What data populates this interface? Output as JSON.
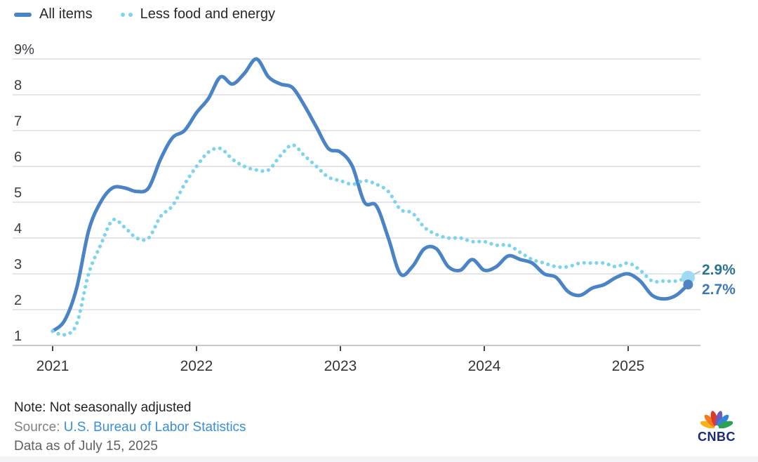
{
  "legend": {
    "all_items_label": "All items",
    "core_label": "Less food and energy"
  },
  "chart_data": {
    "type": "line",
    "title": "",
    "xlabel": "",
    "ylabel": "",
    "x_unit": "monthly",
    "x_start": "2021-01",
    "x_end": "2025-06",
    "x_tick_labels": [
      "2021",
      "2022",
      "2023",
      "2024",
      "2025"
    ],
    "x_tick_month_index": [
      0,
      12,
      24,
      36,
      48
    ],
    "y_tick_labels": [
      "9%",
      "8",
      "7",
      "6",
      "5",
      "4",
      "3",
      "2",
      "1"
    ],
    "y_tick_values": [
      9,
      8,
      7,
      6,
      5,
      4,
      3,
      2,
      1
    ],
    "ylim": [
      1,
      9
    ],
    "grid": "horizontal",
    "legend_position": "top-left",
    "series": [
      {
        "name": "All items",
        "style": "solid",
        "color": "#4a84c6",
        "end_dot_color": "#5182c2",
        "end_label": "2.7%",
        "end_label_color": "#3e78ba",
        "values": [
          1.4,
          1.7,
          2.6,
          4.2,
          5.0,
          5.4,
          5.4,
          5.3,
          5.4,
          6.2,
          6.8,
          7.0,
          7.5,
          7.9,
          8.5,
          8.3,
          8.6,
          9.0,
          8.5,
          8.3,
          8.2,
          7.7,
          7.1,
          6.5,
          6.4,
          6.0,
          5.0,
          4.9,
          4.0,
          3.0,
          3.2,
          3.7,
          3.7,
          3.2,
          3.1,
          3.4,
          3.1,
          3.2,
          3.5,
          3.4,
          3.3,
          3.0,
          2.9,
          2.5,
          2.4,
          2.6,
          2.7,
          2.9,
          3.0,
          2.8,
          2.4,
          2.3,
          2.4,
          2.7
        ]
      },
      {
        "name": "Less food and energy",
        "style": "dotted",
        "color": "#7cd4ee",
        "end_dot_color": "#9edcf4",
        "end_label": "2.9%",
        "end_label_color": "#2d7390",
        "values": [
          1.4,
          1.3,
          1.6,
          3.0,
          3.8,
          4.5,
          4.3,
          4.0,
          4.0,
          4.6,
          4.9,
          5.5,
          6.0,
          6.4,
          6.5,
          6.2,
          6.0,
          5.9,
          5.9,
          6.3,
          6.6,
          6.3,
          6.0,
          5.7,
          5.6,
          5.5,
          5.6,
          5.5,
          5.3,
          4.8,
          4.7,
          4.3,
          4.1,
          4.0,
          4.0,
          3.9,
          3.9,
          3.8,
          3.8,
          3.6,
          3.4,
          3.3,
          3.2,
          3.2,
          3.3,
          3.3,
          3.3,
          3.2,
          3.3,
          3.1,
          2.8,
          2.8,
          2.8,
          2.9
        ]
      }
    ]
  },
  "footer": {
    "note": "Note: Not seasonally adjusted",
    "source_label": "Source: ",
    "source_link": "U.S. Bureau of Labor Statistics",
    "data_as_of": "Data as of July 15, 2025"
  },
  "logo": {
    "brand": "CNBC",
    "peacock_colors": [
      "#f8b21a",
      "#f4791f",
      "#e0392a",
      "#6c5cb7",
      "#2f86d5",
      "#2ba152"
    ]
  },
  "colors": {
    "all_items_line": "#4a84c6",
    "core_line": "#7cd4ee",
    "gridline": "#e5e4e9",
    "axis_line": "#c7c7cc",
    "link_blue": "#3a8fd8"
  }
}
